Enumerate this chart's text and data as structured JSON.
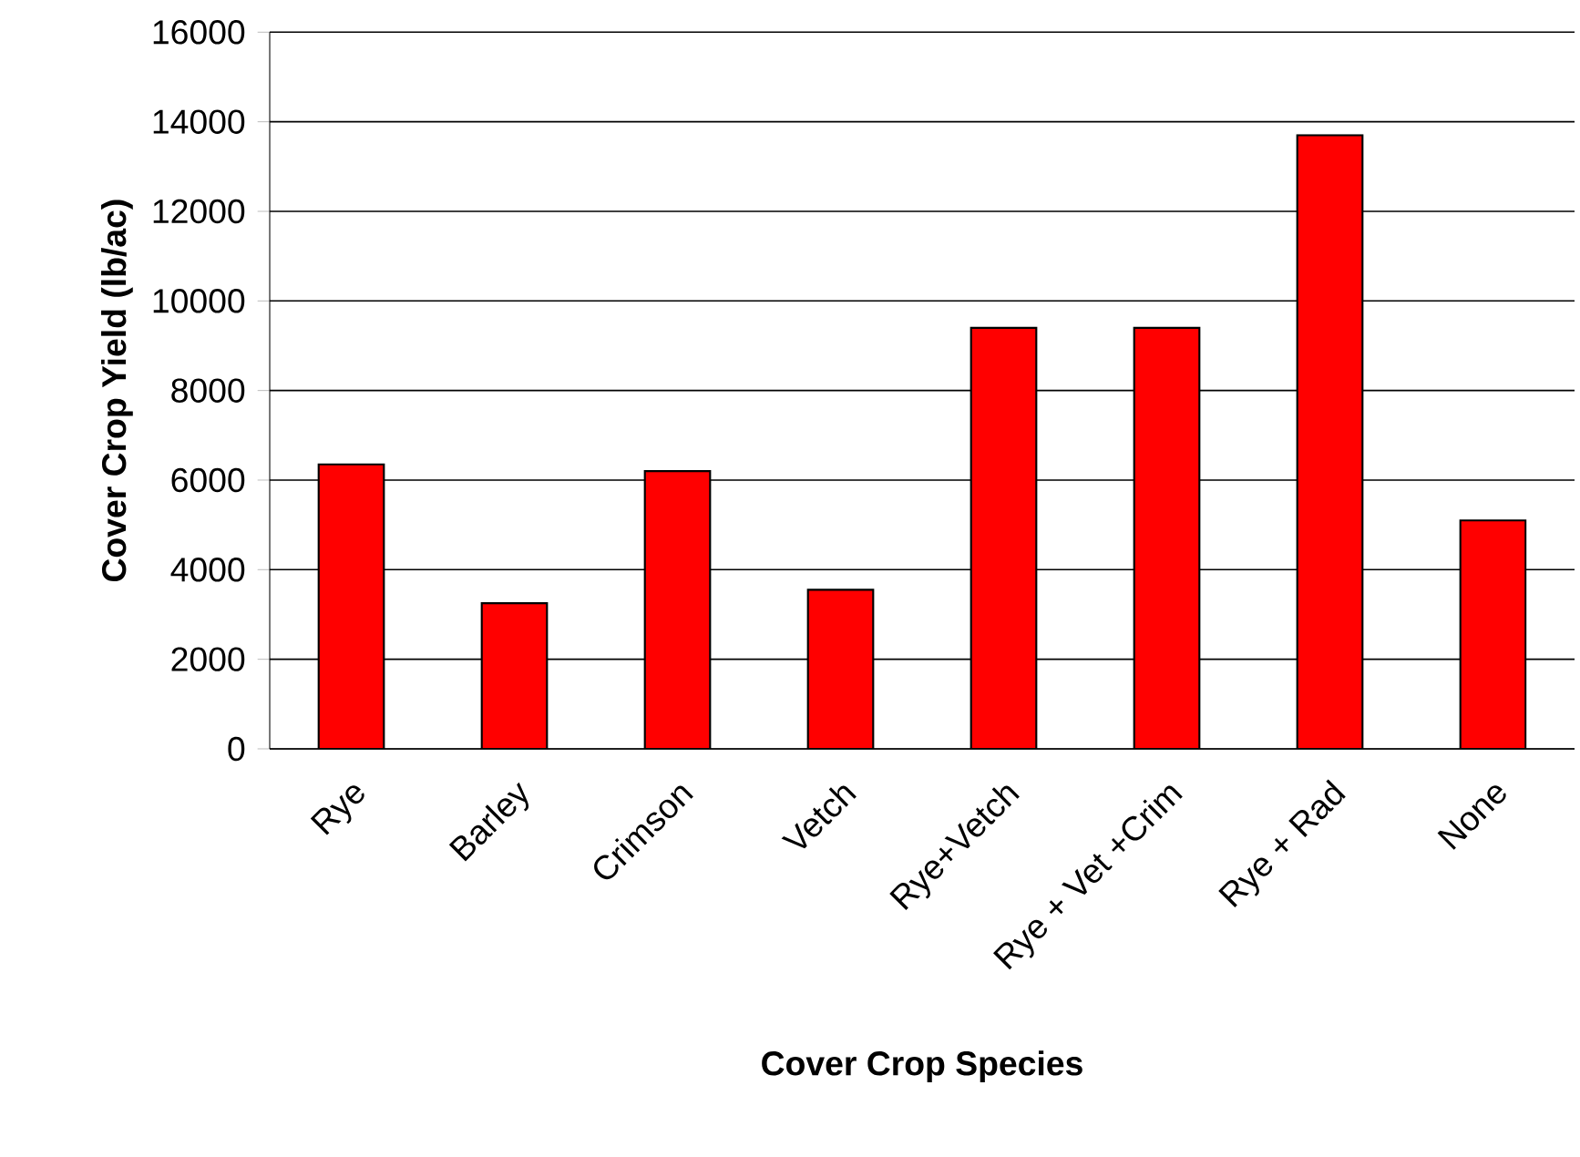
{
  "chart_data": {
    "type": "bar",
    "xlabel": "Cover Crop Species",
    "ylabel": "Cover Crop Yield (lb/ac)",
    "categories": [
      "Rye",
      "Barley",
      "Crimson",
      "Vetch",
      "Rye+Vetch",
      "Rye + Vet +Crim",
      "Rye + Rad",
      "None"
    ],
    "values": [
      6350,
      3250,
      6200,
      3550,
      9400,
      9400,
      13700,
      5100
    ],
    "color": "#ff0000",
    "ylim": [
      0,
      16000
    ],
    "yticks": [
      0,
      2000,
      4000,
      6000,
      8000,
      10000,
      12000,
      14000,
      16000
    ],
    "grid": "y"
  }
}
